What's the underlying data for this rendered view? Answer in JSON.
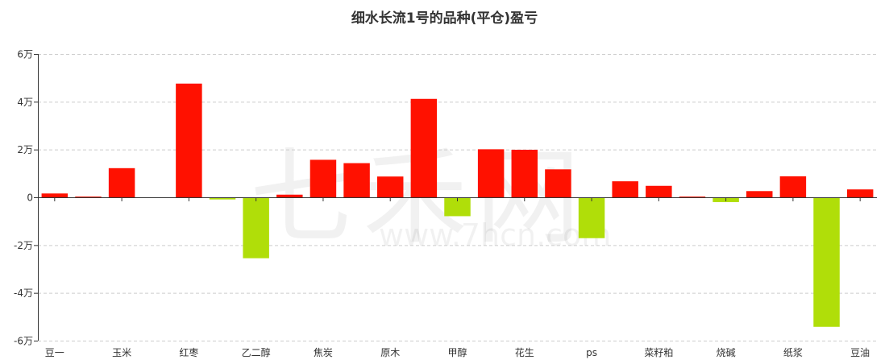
{
  "chart_data": {
    "type": "bar",
    "title": "细水长流1号的品种(平仓)盈亏",
    "xlabel": "",
    "ylabel": "",
    "categories": [
      "豆一",
      "",
      "玉米",
      "",
      "红枣",
      "",
      "乙二醇",
      "",
      "焦炭",
      "",
      "原木",
      "",
      "甲醇",
      "",
      "花生",
      "",
      "ps",
      "",
      "菜籽粕",
      "",
      "烧碱",
      "",
      "纸浆",
      "",
      "豆油"
    ],
    "values": [
      1600,
      300,
      12200,
      0,
      47600,
      -900,
      -25500,
      1100,
      15700,
      14300,
      8700,
      41200,
      -7900,
      20100,
      19900,
      11700,
      -17100,
      6700,
      4800,
      300,
      -2000,
      2600,
      8800,
      -54200,
      3300
    ],
    "ylim": [
      -60000,
      60000
    ],
    "yticks": [
      60000,
      40000,
      20000,
      0,
      -20000,
      -40000,
      -60000
    ],
    "ytick_labels": [
      "6万",
      "4万",
      "2万",
      "0",
      "-2万",
      "-4万",
      "-6万"
    ],
    "grid": true,
    "legend": "none",
    "colors": {
      "positive": "#ff1100",
      "negative": "#b0de09",
      "grid": "#cccccc",
      "axis": "#333333"
    }
  },
  "watermark": {
    "logo_text": "七禾网",
    "url_text": "www.7hcn.com"
  }
}
